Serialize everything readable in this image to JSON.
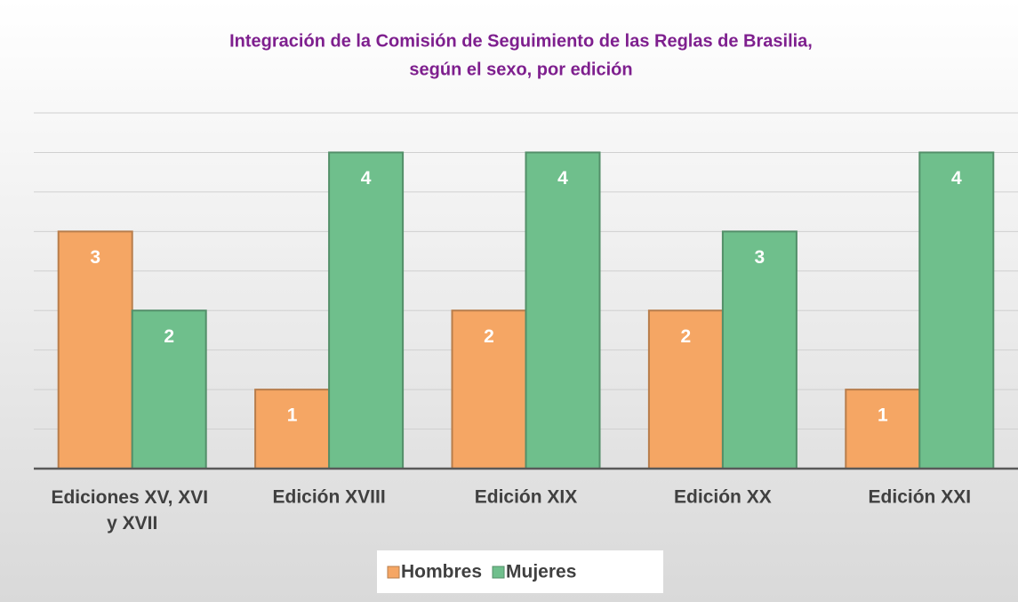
{
  "chart_data": {
    "type": "bar",
    "title": [
      "Integración de la Comisión de Seguimiento de las Reglas de Brasilia,",
      "según el sexo, por edición"
    ],
    "categories": [
      "Ediciones XV, XVI y XVII",
      "Edición XVIII",
      "Edición XIX",
      "Edición XX",
      "Edición XXI"
    ],
    "series": [
      {
        "name": "Hombres",
        "color": "#f5a664",
        "values": [
          3,
          1,
          2,
          2,
          1
        ]
      },
      {
        "name": "Mujeres",
        "color": "#6fbf8c",
        "values": [
          2,
          4,
          4,
          3,
          4
        ]
      }
    ],
    "ylim": [
      0,
      4.5
    ],
    "yticks": [
      0,
      0.5,
      1,
      1.5,
      2,
      2.5,
      3,
      3.5,
      4,
      4.5
    ],
    "grid": true,
    "legend": "bottom"
  }
}
